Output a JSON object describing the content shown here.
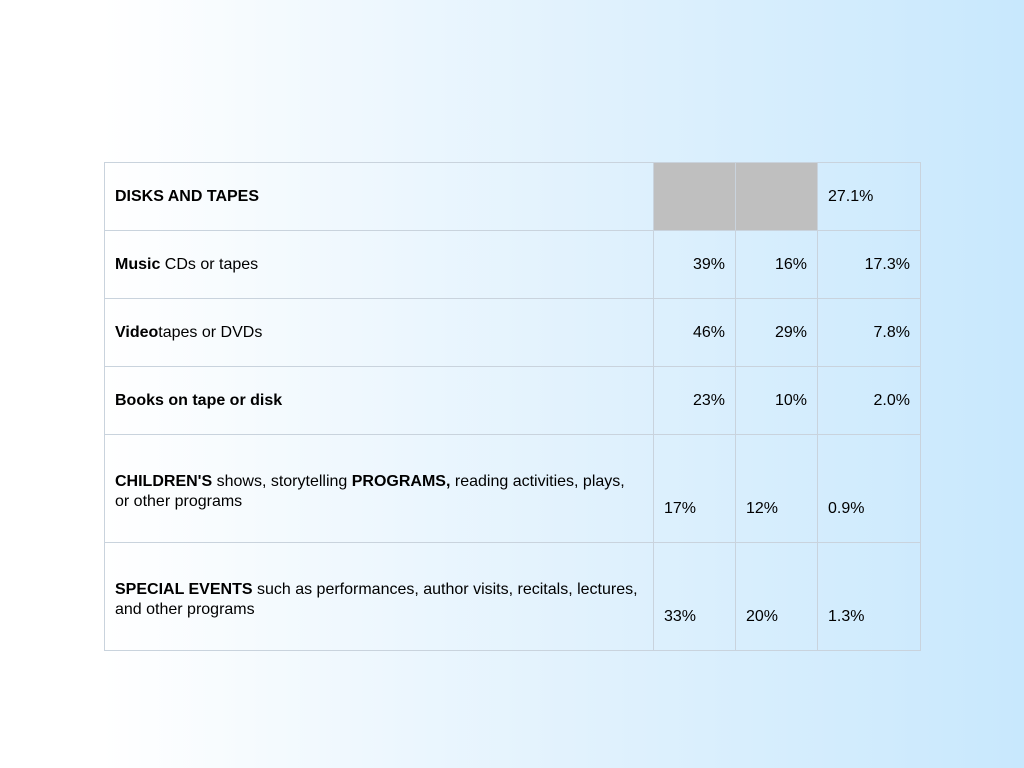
{
  "rows": [
    {
      "label_parts": [
        {
          "text": "DISKS AND TAPES",
          "bold": true
        }
      ],
      "col1": "",
      "col2": "",
      "col3": "27.1%"
    },
    {
      "label_parts": [
        {
          "text": "Music",
          "bold": true
        },
        {
          "text": " CDs or tapes",
          "bold": false
        }
      ],
      "col1": "39%",
      "col2": "16%",
      "col3": "17.3%"
    },
    {
      "label_parts": [
        {
          "text": "Video",
          "bold": true
        },
        {
          "text": "tapes or DVDs",
          "bold": false
        }
      ],
      "col1": "46%",
      "col2": "29%",
      "col3": "7.8%"
    },
    {
      "label_parts": [
        {
          "text": "Books on tape or disk",
          "bold": true
        }
      ],
      "col1": "23%",
      "col2": "10%",
      "col3": "2.0%"
    },
    {
      "label_parts": [
        {
          "text": "CHILDREN'S",
          "bold": true
        },
        {
          "text": " shows, storytelling ",
          "bold": false
        },
        {
          "text": "PROGRAMS,",
          "bold": true
        },
        {
          "text": " reading activities, plays, or other programs",
          "bold": false
        }
      ],
      "col1": "17%",
      "col2": "12%",
      "col3": "0.9%"
    },
    {
      "label_parts": [
        {
          "text": "SPECIAL EVENTS",
          "bold": true
        },
        {
          "text": " such as performances, author visits, recitals, lectures, and other programs",
          "bold": false
        }
      ],
      "col1": "33%",
      "col2": "20%",
      "col3": "1.3%"
    }
  ]
}
